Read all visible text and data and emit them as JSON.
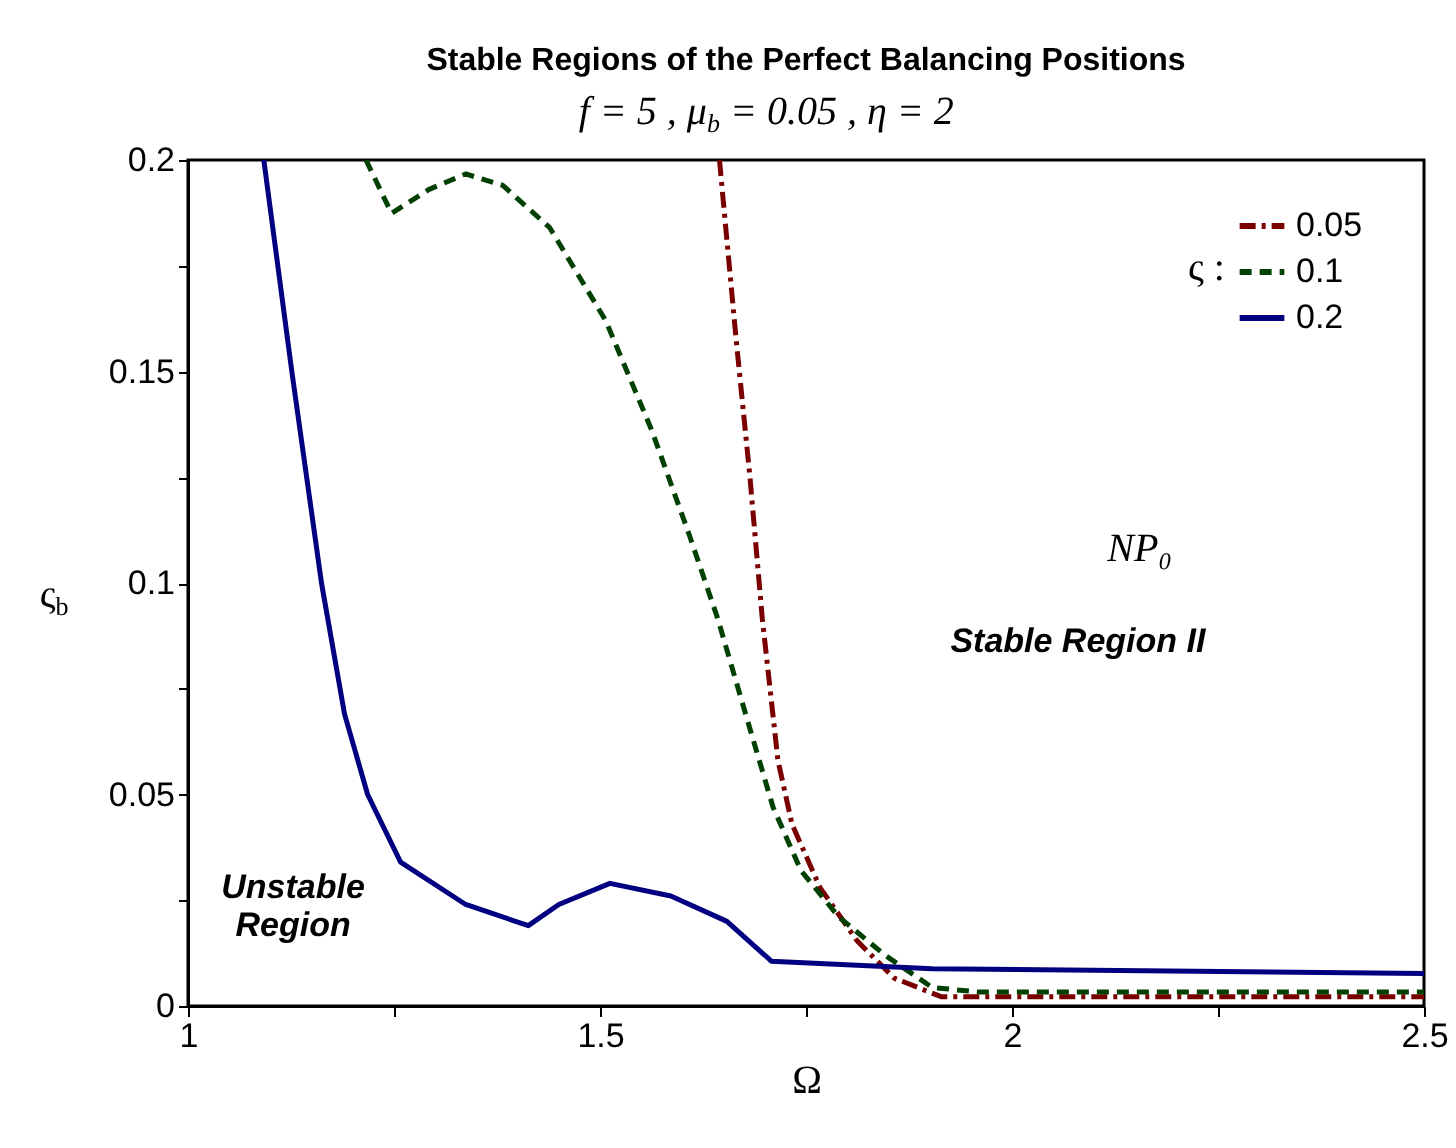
{
  "chart_data": {
    "type": "line",
    "title": "Stable Regions of the Perfect Balancing Positions",
    "subtitle": "f = 5   ,   μ$_{b}$ = 0.05   ,   η = 2",
    "xlabel": "Ω",
    "ylabel": "ς$_{b}$",
    "legend_title": "ς :",
    "legend": "top right",
    "grid": false,
    "marker": "none",
    "xlim": [
      1,
      2.5
    ],
    "ylim": [
      0,
      0.2
    ],
    "xticks": [
      1,
      {
        "value": 1.25,
        "label": null
      },
      1.5,
      {
        "value": 1.75,
        "label": null
      },
      2,
      {
        "value": 2.25,
        "label": null
      },
      2.5
    ],
    "yticks": [
      0,
      {
        "value": 0.025,
        "label": null
      },
      0.05,
      {
        "value": 0.075,
        "label": null
      },
      0.1,
      {
        "value": 0.125,
        "label": null
      },
      0.15,
      {
        "value": 0.175,
        "label": null
      },
      0.2
    ],
    "annotations": [
      "NP₀",
      "Stable Region II",
      "Unstable\nRegion"
    ],
    "series": [
      {
        "name": "0.05",
        "color": "#7a0000",
        "line_style": "dashdot",
        "x": [
          1.645,
          1.665,
          1.682,
          1.697,
          1.716,
          1.733,
          1.767,
          1.812,
          1.857,
          1.914,
          2.5
        ],
        "values": [
          0.2,
          0.158,
          0.125,
          0.0915,
          0.058,
          0.043,
          0.028,
          0.0154,
          0.0066,
          0.0022,
          0.0022
        ]
      },
      {
        "name": "0.1",
        "color": "#004000",
        "line_style": "dashed",
        "x": [
          1.216,
          1.247,
          1.292,
          1.337,
          1.382,
          1.439,
          1.507,
          1.563,
          1.609,
          1.643,
          1.676,
          1.71,
          1.744,
          1.79,
          1.846,
          1.903,
          1.959,
          2.5
        ],
        "values": [
          0.2,
          0.1874,
          0.193,
          0.1967,
          0.194,
          0.184,
          0.162,
          0.136,
          0.111,
          0.0915,
          0.0695,
          0.047,
          0.032,
          0.021,
          0.012,
          0.0044,
          0.0033,
          0.0033
        ]
      },
      {
        "name": "0.2",
        "color": "#000080",
        "line_style": "solid",
        "x": [
          1.092,
          1.126,
          1.162,
          1.19,
          1.218,
          1.258,
          1.337,
          1.413,
          1.45,
          1.512,
          1.586,
          1.654,
          1.708,
          1.903,
          2.5
        ],
        "values": [
          0.2,
          0.15,
          0.1,
          0.069,
          0.05,
          0.034,
          0.024,
          0.019,
          0.024,
          0.029,
          0.026,
          0.02,
          0.0106,
          0.0088,
          0.0077
        ]
      }
    ]
  }
}
